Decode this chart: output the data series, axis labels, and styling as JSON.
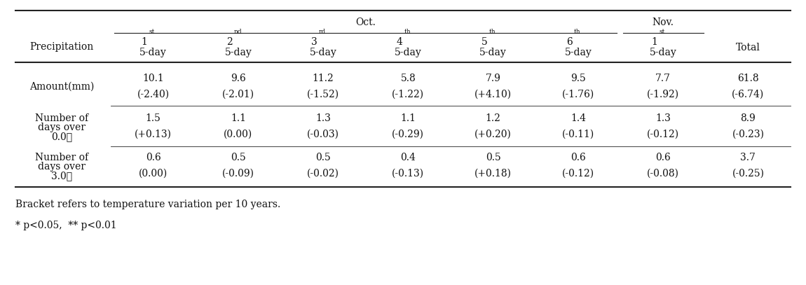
{
  "rows": [
    {
      "label": "Amount(mm)",
      "label_lines": [
        "Amount(mm)"
      ],
      "values": [
        "10.1",
        "9.6",
        "11.2",
        "5.8",
        "7.9",
        "9.5",
        "7.7",
        "61.8"
      ],
      "slopes": [
        "(-2.40)",
        "(-2.01)",
        "(-1.52)",
        "(-1.22)",
        "(+4.10)",
        "(-1.76)",
        "(-1.92)",
        "(-6.74)"
      ]
    },
    {
      "label": "Number of\ndays over\n0.0mm",
      "label_lines": [
        "Number of",
        "days over",
        "0.0㎜"
      ],
      "values": [
        "1.5",
        "1.1",
        "1.3",
        "1.1",
        "1.2",
        "1.4",
        "1.3",
        "8.9"
      ],
      "slopes": [
        "(+0.13)",
        "(0.00)",
        "(-0.03)",
        "(-0.29)",
        "(+0.20)",
        "(-0.11)",
        "(-0.12)",
        "(-0.23)"
      ]
    },
    {
      "label": "Number of\ndays over\n3.0mm",
      "label_lines": [
        "Number of",
        "days over",
        "3.0㎜"
      ],
      "values": [
        "0.6",
        "0.5",
        "0.5",
        "0.4",
        "0.5",
        "0.6",
        "0.6",
        "3.7"
      ],
      "slopes": [
        "(0.00)",
        "(-0.09)",
        "(-0.02)",
        "(-0.13)",
        "(+0.18)",
        "(-0.12)",
        "(-0.08)",
        "(-0.25)"
      ]
    }
  ],
  "ordinals": [
    "1",
    "2",
    "3",
    "4",
    "5",
    "6",
    "1"
  ],
  "supers": [
    "st",
    "nd",
    "rd",
    "th",
    "th",
    "th",
    "st"
  ],
  "footnote1": "Bracket refers to temperature variation per 10 years.",
  "footnote2": "* p<0.05,  ** p<0.01",
  "bg_color": "#ffffff",
  "text_color": "#111111",
  "line_color": "#222222",
  "font_size": 10.0
}
